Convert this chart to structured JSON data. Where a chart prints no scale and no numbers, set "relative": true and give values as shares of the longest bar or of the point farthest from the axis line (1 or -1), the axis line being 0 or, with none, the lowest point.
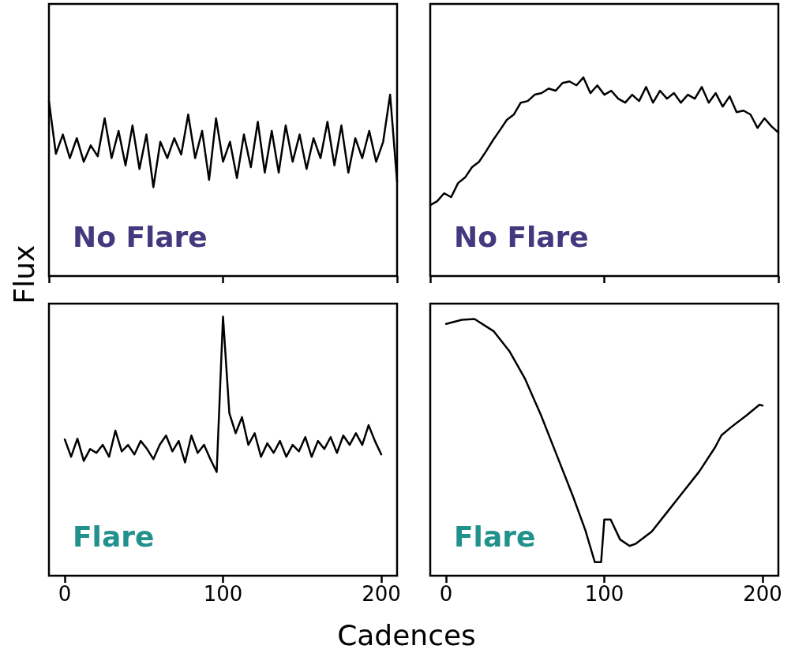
{
  "chart_data": [
    {
      "type": "line",
      "relative": true,
      "ylabel": "Flux",
      "annotations": [
        "No Flare"
      ],
      "tick_labels": false,
      "grid": false,
      "marker": "none",
      "categories": [
        null,
        null,
        null,
        null,
        null,
        null,
        null,
        null,
        null,
        null,
        null,
        null,
        null,
        null,
        null,
        null,
        null,
        null,
        null,
        null,
        null,
        null,
        null,
        null,
        null,
        null,
        null,
        null,
        null,
        null,
        null,
        null,
        null,
        null,
        null,
        null,
        null,
        null,
        null,
        null,
        null,
        null,
        null,
        null,
        null,
        null,
        null,
        null,
        null,
        null,
        null
      ],
      "series": [
        {
          "color": "#000000",
          "values": [
            0.965,
            0.674,
            0.78,
            0.65,
            0.76,
            0.63,
            0.72,
            0.66,
            0.87,
            0.65,
            0.8,
            0.61,
            0.83,
            0.59,
            0.78,
            0.49,
            0.74,
            0.65,
            0.76,
            0.67,
            0.89,
            0.65,
            0.8,
            0.53,
            0.87,
            0.63,
            0.74,
            0.54,
            0.78,
            0.6,
            0.85,
            0.57,
            0.8,
            0.57,
            0.83,
            0.63,
            0.78,
            0.59,
            0.76,
            0.65,
            0.85,
            0.61,
            0.83,
            0.57,
            0.76,
            0.65,
            0.8,
            0.63,
            0.74,
            1,
            0.52
          ]
        }
      ]
    },
    {
      "type": "line",
      "relative": true,
      "annotations": [
        "No Flare"
      ],
      "tick_labels": false,
      "grid": false,
      "marker": "none",
      "categories": [
        null,
        null,
        null,
        null,
        null,
        null,
        null,
        null,
        null,
        null,
        null,
        null,
        null,
        null,
        null,
        null,
        null,
        null,
        null,
        null,
        null,
        null,
        null,
        null,
        null,
        null,
        null,
        null,
        null,
        null,
        null,
        null,
        null,
        null,
        null,
        null,
        null,
        null,
        null,
        null,
        null,
        null,
        null,
        null,
        null,
        null,
        null,
        null,
        null,
        null,
        null
      ],
      "series": [
        {
          "color": "#000000",
          "values": [
            0.357,
            0.377,
            0.417,
            0.397,
            0.468,
            0.496,
            0.548,
            0.575,
            0.627,
            0.683,
            0.734,
            0.786,
            0.813,
            0.873,
            0.881,
            0.913,
            0.921,
            0.944,
            0.933,
            0.972,
            0.98,
            0.96,
            1,
            0.921,
            0.96,
            0.913,
            0.933,
            0.893,
            0.873,
            0.913,
            0.881,
            0.952,
            0.873,
            0.933,
            0.893,
            0.921,
            0.873,
            0.913,
            0.893,
            0.952,
            0.873,
            0.921,
            0.853,
            0.905,
            0.825,
            0.833,
            0.813,
            0.746,
            0.794,
            0.754,
            0.722
          ]
        }
      ]
    },
    {
      "type": "line",
      "relative": true,
      "annotations": [
        "Flare"
      ],
      "xlabel": "Cadences",
      "xlim": [
        -10,
        210
      ],
      "xticks": [
        0,
        100,
        200
      ],
      "tick_labels": "x",
      "grid": false,
      "marker": "none",
      "x": [
        0,
        4,
        8,
        12,
        16,
        20,
        24,
        28,
        32,
        36,
        40,
        44,
        48,
        52,
        56,
        60,
        64,
        68,
        72,
        76,
        80,
        84,
        88,
        92,
        96,
        100,
        104,
        108,
        112,
        116,
        120,
        124,
        128,
        132,
        136,
        140,
        144,
        148,
        152,
        156,
        160,
        164,
        168,
        172,
        176,
        180,
        184,
        188,
        192,
        196,
        200
      ],
      "series": [
        {
          "color": "#000000",
          "values": [
            0.526,
            0.459,
            0.529,
            0.443,
            0.489,
            0.474,
            0.505,
            0.459,
            0.56,
            0.48,
            0.505,
            0.468,
            0.52,
            0.489,
            0.45,
            0.505,
            0.541,
            0.48,
            0.52,
            0.437,
            0.541,
            0.474,
            0.505,
            0.45,
            0.4,
            1,
            0.627,
            0.55,
            0.612,
            0.505,
            0.55,
            0.459,
            0.511,
            0.474,
            0.52,
            0.459,
            0.505,
            0.48,
            0.535,
            0.459,
            0.52,
            0.489,
            0.535,
            0.474,
            0.541,
            0.505,
            0.55,
            0.505,
            0.581,
            0.52,
            0.468
          ]
        }
      ]
    },
    {
      "type": "line",
      "relative": true,
      "annotations": [
        "Flare"
      ],
      "xlim": [
        -10,
        210
      ],
      "xticks": [
        0,
        100,
        200
      ],
      "tick_labels": "x",
      "grid": false,
      "marker": "none",
      "x": [
        0,
        10,
        18,
        30,
        40,
        50,
        60,
        70,
        80,
        88,
        94,
        98,
        100,
        104,
        110,
        116,
        120,
        130,
        140,
        150,
        160,
        170,
        174,
        180,
        190,
        198,
        200
      ],
      "series": [
        {
          "color": "#000000",
          "values": [
            0.981,
            0.997,
            1,
            0.953,
            0.875,
            0.766,
            0.625,
            0.469,
            0.3125,
            0.178,
            0.053,
            0.053,
            0.219,
            0.219,
            0.141,
            0.116,
            0.125,
            0.172,
            0.25,
            0.328,
            0.406,
            0.5,
            0.547,
            0.578,
            0.625,
            0.666,
            0.663
          ]
        }
      ]
    }
  ]
}
